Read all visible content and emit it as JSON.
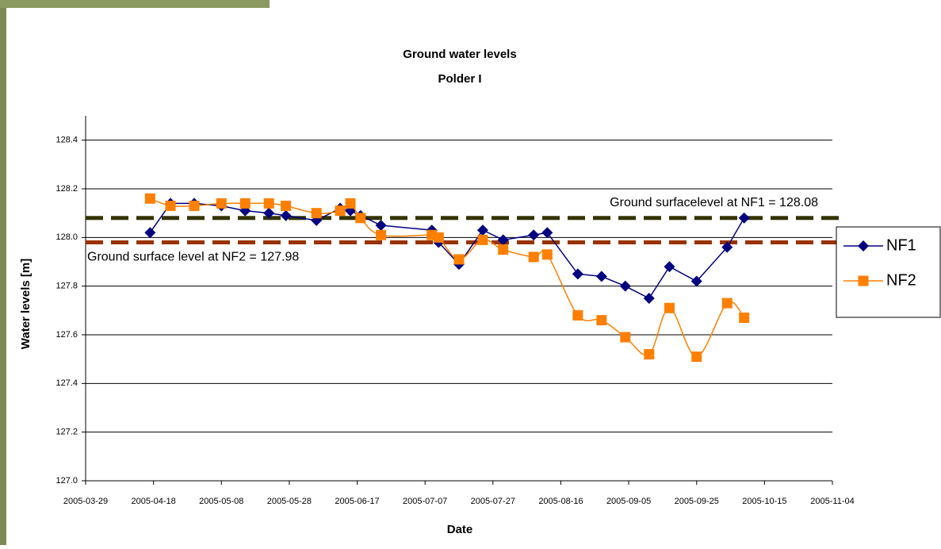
{
  "chart_data": {
    "type": "line",
    "title": "Ground water levels",
    "subtitle": "Polder I",
    "x_label": "Date",
    "y_label": "Water levels [m]",
    "xlim": [
      "2005-03-29",
      "2005-11-04"
    ],
    "xticks": [
      "2005-03-29",
      "2005-04-18",
      "2005-05-08",
      "2005-05-28",
      "2005-06-17",
      "2005-07-07",
      "2005-07-27",
      "2005-08-16",
      "2005-09-05",
      "2005-09-25",
      "2005-10-15",
      "2005-11-04"
    ],
    "ylim": [
      127.0,
      128.5
    ],
    "yticks": [
      {
        "value": 127.0,
        "label": "127.0"
      },
      127.2,
      127.4,
      127.6,
      127.8,
      {
        "value": 128.0,
        "label": "128.0"
      },
      128.2,
      128.4
    ],
    "grid": true,
    "legend": "right",
    "x": [
      "2005-04-17",
      "2005-04-23",
      "2005-04-30",
      "2005-05-08",
      "2005-05-15",
      "2005-05-22",
      "2005-05-27",
      "2005-06-05",
      "2005-06-12",
      "2005-06-15",
      "2005-06-18",
      "2005-06-24",
      "2005-07-09",
      "2005-07-11",
      "2005-07-17",
      "2005-07-24",
      "2005-07-30",
      "2005-08-08",
      "2005-08-12",
      "2005-08-21",
      "2005-08-28",
      "2005-09-04",
      "2005-09-11",
      "2005-09-17",
      "2005-09-25",
      "2005-10-04",
      "2005-10-09"
    ],
    "series": [
      {
        "name": "NF1",
        "color": "#000080",
        "marker": "diamond",
        "smooth": false,
        "values": [
          128.02,
          128.14,
          128.14,
          128.13,
          128.11,
          128.1,
          128.09,
          128.07,
          128.12,
          128.11,
          128.09,
          128.05,
          128.03,
          127.98,
          127.89,
          128.03,
          127.99,
          128.01,
          128.02,
          127.85,
          127.84,
          127.8,
          127.75,
          127.88,
          127.82,
          127.96,
          128.08
        ]
      },
      {
        "name": "NF2",
        "color": "#ff7f00",
        "marker": "square",
        "smooth": true,
        "values": [
          128.16,
          128.13,
          128.13,
          128.14,
          128.14,
          128.14,
          128.13,
          128.1,
          128.11,
          128.14,
          128.08,
          128.01,
          128.01,
          128.0,
          127.91,
          127.99,
          127.95,
          127.92,
          127.93,
          127.68,
          127.66,
          127.59,
          127.52,
          127.71,
          127.51,
          127.73,
          127.67
        ]
      }
    ],
    "reference_lines": [
      {
        "label": "Ground surfacelevel at NF1 = 128.08",
        "value": 128.08,
        "color": "#333300",
        "label_side": "above-right"
      },
      {
        "label": "Ground surface level at NF2 = 127.98",
        "value": 127.98,
        "color": "#993300",
        "label_side": "below-left"
      }
    ]
  }
}
